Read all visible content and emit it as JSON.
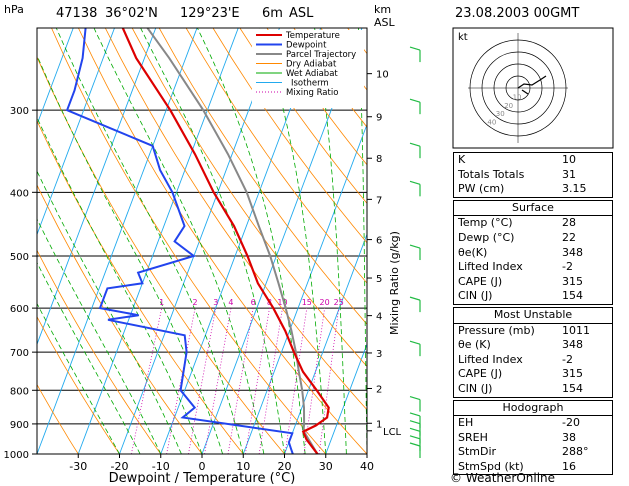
{
  "header": {
    "hpa_label": "hPa",
    "station": "47138",
    "lat": "36°02'N",
    "lon": "129°23'E",
    "elev": "6m",
    "elev_ref": "ASL",
    "km_label": "km",
    "asl_label": "ASL",
    "datetime": "23.08.2003 00GMT"
  },
  "legend": [
    "Temperature",
    "Dewpoint",
    "Parcel Trajectory",
    "Dry Adiabat",
    "Wet Adiabat",
    "Isotherm",
    "Mixing Ratio"
  ],
  "colors": {
    "temperature": "#dd0000",
    "dewpoint": "#2244ee",
    "parcel": "#888888",
    "dry_adiabat": "#ff8800",
    "wet_adiabat": "#00aa00",
    "isotherm": "#22aaee",
    "mixing_ratio": "#cc00aa",
    "wind": "#22bb44"
  },
  "footer_site": "© WeatherOnline",
  "hodograph": {
    "label": "kt",
    "rings": [
      "10",
      "20",
      "30",
      "40"
    ]
  },
  "chart_data": {
    "type": "line",
    "title": "",
    "xlabel": "Dewpoint / Temperature (°C)",
    "ylabel": "hPa",
    "y2label": "Mixing Ratio (g/kg)",
    "xlim": [
      -40,
      40
    ],
    "ylim": [
      1000,
      225
    ],
    "x_ticks": [
      "-30",
      "-20",
      "-10",
      "0",
      "10",
      "20",
      "30",
      "40"
    ],
    "pressure_ticks": [
      "300",
      "400",
      "500",
      "600",
      "700",
      "800",
      "900",
      "1000"
    ],
    "km_ticks": [
      {
        "km": "1",
        "p": 898
      },
      {
        "km": "2",
        "p": 795
      },
      {
        "km": "3",
        "p": 702
      },
      {
        "km": "4",
        "p": 616
      },
      {
        "km": "5",
        "p": 540
      },
      {
        "km": "6",
        "p": 472
      },
      {
        "km": "7",
        "p": 410
      },
      {
        "km": "8",
        "p": 355
      },
      {
        "km": "9",
        "p": 307
      },
      {
        "km": "10",
        "p": 264
      }
    ],
    "lcl": {
      "label": "LCL",
      "p": 922
    },
    "mixing_ratio_labels": [
      "1",
      "2",
      "3",
      "4",
      "6",
      "8",
      "10",
      "15",
      "20",
      "25"
    ],
    "series": [
      {
        "name": "Temperature",
        "p": [
          1000,
          950,
          925,
          905,
          880,
          850,
          800,
          750,
          700,
          650,
          600,
          550,
          500,
          450,
          400,
          350,
          300,
          250,
          225
        ],
        "t": [
          28,
          24,
          22.5,
          25,
          27,
          26.5,
          22,
          17,
          13,
          9,
          4,
          -2,
          -7,
          -13,
          -21,
          -29,
          -39,
          -52,
          -58
        ]
      },
      {
        "name": "Dewpoint",
        "p": [
          1000,
          980,
          960,
          930,
          880,
          850,
          800,
          700,
          660,
          625,
          615,
          600,
          560,
          550,
          530,
          500,
          475,
          450,
          400,
          370,
          340,
          300,
          280,
          250,
          225
        ],
        "t": [
          22,
          21,
          20,
          20,
          -8,
          -6,
          -11,
          -13,
          -15,
          -35,
          -28,
          -38,
          -38,
          -30,
          -32,
          -20,
          -26,
          -25,
          -31,
          -36,
          -40,
          -64,
          -64,
          -65,
          -67
        ]
      },
      {
        "name": "Parcel Trajectory",
        "p": [
          1000,
          950,
          922,
          900,
          850,
          800,
          750,
          700,
          650,
          600,
          550,
          500,
          450,
          400,
          350,
          300,
          250,
          225
        ],
        "t": [
          28,
          24.5,
          22.5,
          22,
          20.5,
          18.5,
          16,
          13.5,
          10.5,
          7,
          3,
          -1.5,
          -7,
          -13,
          -21,
          -31,
          -44,
          -52
        ]
      }
    ]
  },
  "indices": {
    "rows": [
      {
        "label": "K",
        "value": "10"
      },
      {
        "label": "Totals Totals",
        "value": "31"
      },
      {
        "label": "PW (cm)",
        "value": "3.15"
      }
    ],
    "surface": {
      "title": "Surface",
      "rows": [
        {
          "label": "Temp (°C)",
          "value": "28"
        },
        {
          "label": "Dewp (°C)",
          "value": "22"
        },
        {
          "label": "θe(K)",
          "value": "348"
        },
        {
          "label": "Lifted Index",
          "value": "-2"
        },
        {
          "label": "CAPE (J)",
          "value": "315"
        },
        {
          "label": "CIN (J)",
          "value": "154"
        }
      ]
    },
    "most_unstable": {
      "title": "Most Unstable",
      "rows": [
        {
          "label": "Pressure (mb)",
          "value": "1011"
        },
        {
          "label": "θe (K)",
          "value": "348"
        },
        {
          "label": "Lifted Index",
          "value": "-2"
        },
        {
          "label": "CAPE (J)",
          "value": "315"
        },
        {
          "label": "CIN (J)",
          "value": "154"
        }
      ]
    },
    "hodograph": {
      "title": "Hodograph",
      "rows": [
        {
          "label": "EH",
          "value": "-20"
        },
        {
          "label": "SREH",
          "value": "38"
        },
        {
          "label": "StmDir",
          "value": "288°"
        },
        {
          "label": "StmSpd (kt)",
          "value": "16"
        }
      ]
    }
  }
}
